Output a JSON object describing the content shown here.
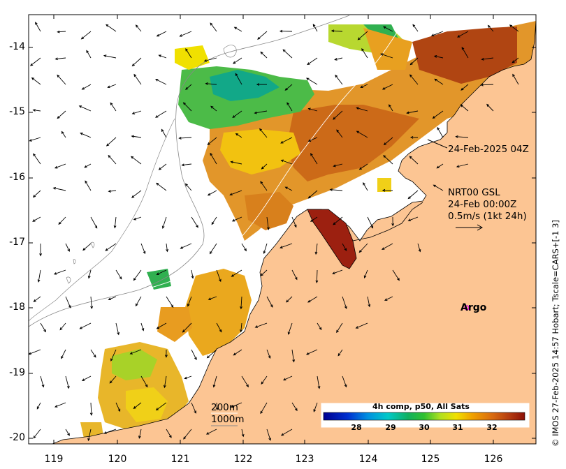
{
  "map": {
    "annotation_date": "24-Feb-2025 04Z",
    "currents_source": "NRT00 GSL",
    "currents_time": "24-Feb 00:00Z",
    "scale_arrow_label": "0.5m/s (1kt 24h)",
    "argo_label": "Argo",
    "contour_200": "200m",
    "contour_1000": "1000m",
    "credit": "© IMOS 27-Feb-2025 14:57 Hobart; Tscale=CARS+[-1 3]",
    "y_ticks": [
      "-14",
      "-15",
      "-16",
      "-17",
      "-18",
      "-19",
      "-20"
    ],
    "x_ticks": [
      "119",
      "120",
      "121",
      "122",
      "123",
      "124",
      "125",
      "126"
    ],
    "colors": {
      "land": "#fcc593",
      "ocean": "#ffffff",
      "argo_marker": "#e000e0"
    }
  },
  "colorbar": {
    "title": "4h comp, p50, All Sats",
    "ticks": [
      "28",
      "29",
      "30",
      "31",
      "32"
    ],
    "range": [
      27.5,
      32.5
    ]
  }
}
